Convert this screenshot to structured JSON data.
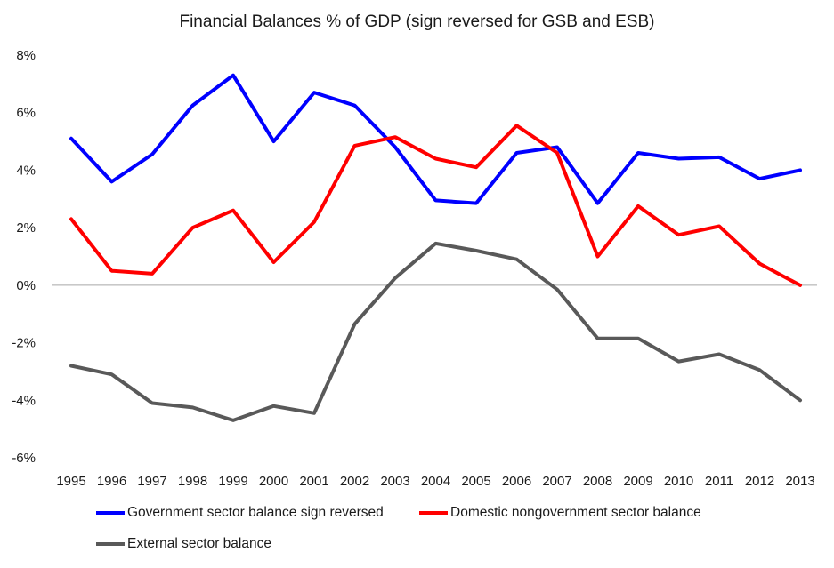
{
  "chart_data": {
    "type": "line",
    "title": "Financial Balances % of GDP (sign reversed for GSB and ESB)",
    "xlabel": "",
    "ylabel": "",
    "categories": [
      "1995",
      "1996",
      "1997",
      "1998",
      "1999",
      "2000",
      "2001",
      "2002",
      "2003",
      "2004",
      "2005",
      "2006",
      "2007",
      "2008",
      "2009",
      "2010",
      "2011",
      "2012",
      "2013"
    ],
    "y_ticks": [
      "-6%",
      "-4%",
      "-2%",
      "0%",
      "2%",
      "4%",
      "6%",
      "8%"
    ],
    "ylim": [
      -6,
      8
    ],
    "grid": false,
    "legend_position": "bottom",
    "series": [
      {
        "name": "Government sector balance sign reversed",
        "color": "#0000ff",
        "values": [
          5.1,
          3.6,
          4.55,
          6.25,
          7.3,
          5.0,
          6.7,
          6.25,
          4.8,
          2.95,
          2.85,
          4.6,
          4.8,
          2.85,
          4.6,
          4.4,
          4.45,
          3.7,
          4.0
        ]
      },
      {
        "name": "Domestic nongovernment sector balance",
        "color": "#ff0000",
        "values": [
          2.3,
          0.5,
          0.4,
          2.0,
          2.6,
          0.8,
          2.2,
          4.85,
          5.15,
          4.4,
          4.1,
          5.55,
          4.6,
          1.0,
          2.75,
          1.75,
          2.05,
          0.75,
          0.0
        ]
      },
      {
        "name": "External sector balance",
        "color": "#595959",
        "values": [
          -2.8,
          -3.1,
          -4.1,
          -4.25,
          -4.7,
          -4.2,
          -4.45,
          -1.35,
          0.25,
          1.45,
          1.2,
          0.9,
          -0.15,
          -1.85,
          -1.85,
          -2.65,
          -2.4,
          -2.95,
          -4.0
        ]
      }
    ]
  }
}
